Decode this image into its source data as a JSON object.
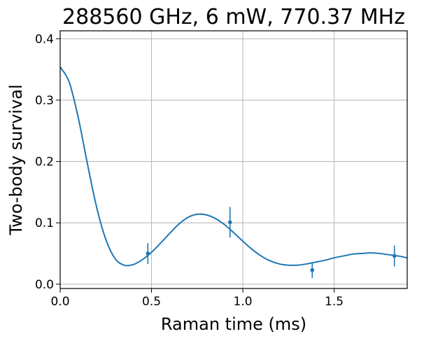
{
  "chart_data": {
    "type": "scatter",
    "title": "288560 GHz, 6 mW, 770.37 MHz",
    "xlabel": "Raman time (ms)",
    "ylabel": "Two-body survival",
    "xlim": [
      0.0,
      1.9
    ],
    "ylim": [
      -0.007,
      0.413
    ],
    "grid": true,
    "x_ticks": [
      0.0,
      0.5,
      1.0,
      1.5
    ],
    "x_tick_labels": [
      "0.0",
      "0.5",
      "1.0",
      "1.5"
    ],
    "y_ticks": [
      0.0,
      0.1,
      0.2,
      0.3,
      0.4
    ],
    "y_tick_labels": [
      "0.0",
      "0.1",
      "0.2",
      "0.3",
      "0.4"
    ],
    "series": [
      {
        "kind": "errorbar",
        "color": "#1f77b4",
        "x": [
          0.48,
          0.93,
          1.38,
          1.83
        ],
        "y": [
          0.05,
          0.101,
          0.023,
          0.046
        ],
        "yerr": [
          0.017,
          0.025,
          0.013,
          0.017
        ]
      },
      {
        "kind": "fit",
        "color": "#1f77b4",
        "x": [
          0.0,
          0.05,
          0.1,
          0.15,
          0.2,
          0.25,
          0.3,
          0.35,
          0.4,
          0.45,
          0.5,
          0.55,
          0.6,
          0.65,
          0.7,
          0.75,
          0.8,
          0.85,
          0.9,
          0.95,
          1.0,
          1.05,
          1.1,
          1.15,
          1.2,
          1.25,
          1.3,
          1.35,
          1.4,
          1.45,
          1.5,
          1.55,
          1.6,
          1.65,
          1.7,
          1.75,
          1.8,
          1.85,
          1.9
        ],
        "y": [
          0.354,
          0.329,
          0.27,
          0.195,
          0.125,
          0.073,
          0.042,
          0.031,
          0.032,
          0.04,
          0.052,
          0.067,
          0.083,
          0.098,
          0.109,
          0.114,
          0.113,
          0.107,
          0.097,
          0.084,
          0.07,
          0.057,
          0.046,
          0.038,
          0.033,
          0.031,
          0.031,
          0.033,
          0.036,
          0.039,
          0.043,
          0.046,
          0.049,
          0.05,
          0.051,
          0.05,
          0.048,
          0.046,
          0.043
        ]
      }
    ]
  }
}
